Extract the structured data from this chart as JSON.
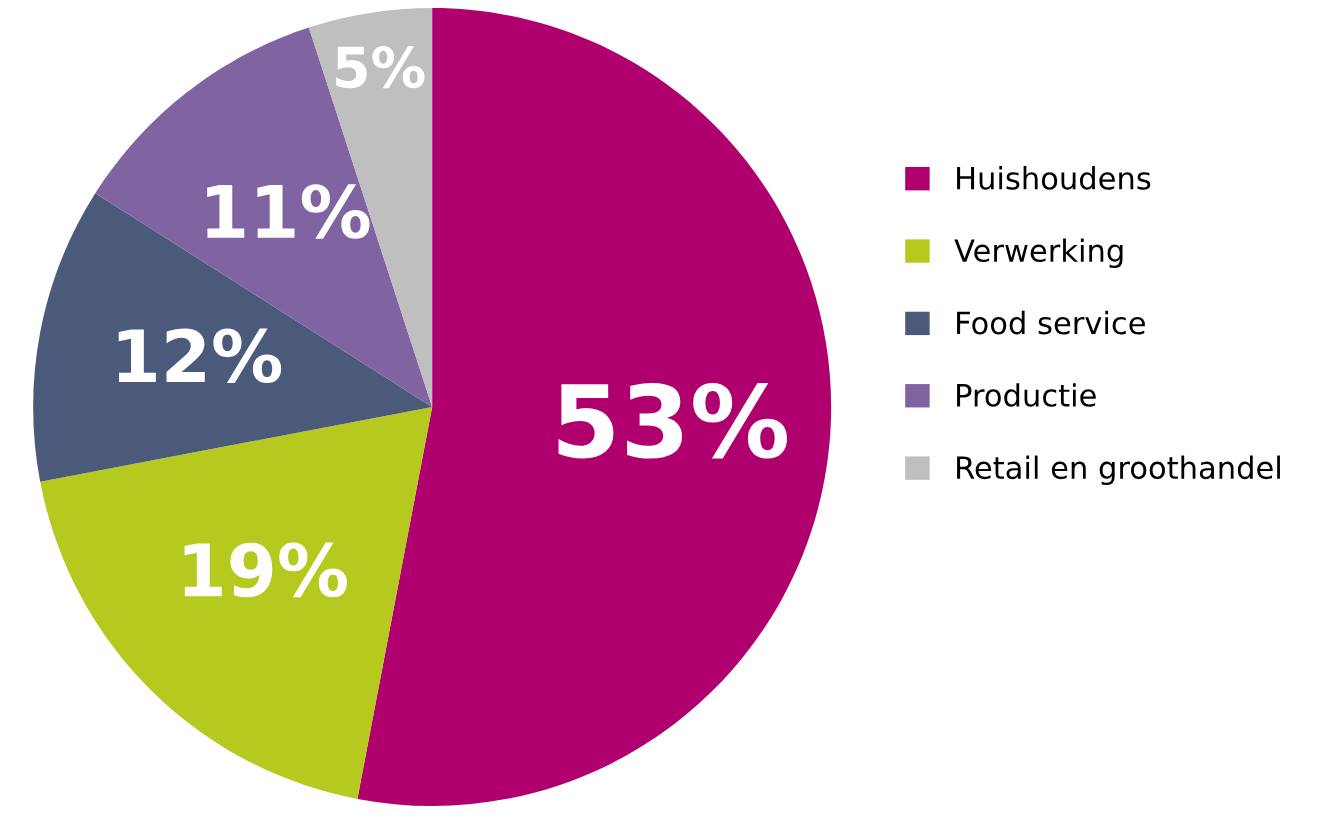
{
  "chart_data": {
    "type": "pie",
    "categories": [
      "Huishoudens",
      "Verwerking",
      "Food service",
      "Productie",
      "Retail en groothandel"
    ],
    "values": [
      53,
      19,
      12,
      11,
      5
    ],
    "colors": [
      "#b0006e",
      "#b6c91f",
      "#4b5a7b",
      "#8063a1",
      "#bfbfbf"
    ],
    "value_labels": [
      "53%",
      "19%",
      "12%",
      "11%",
      "5%"
    ],
    "legend": "right"
  }
}
